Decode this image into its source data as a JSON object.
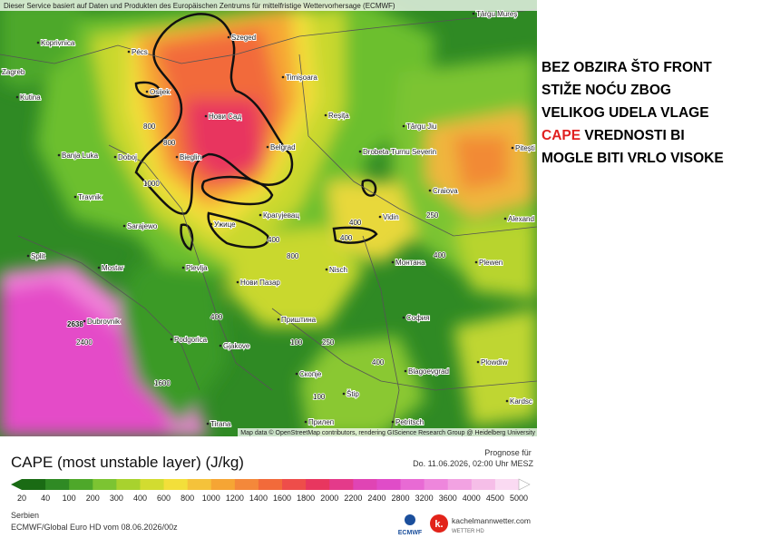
{
  "map": {
    "attribution_top": "Dieser Service basiert auf Daten und Produkten des Europäischen Zentrums für mittelfristige Wettervorhersage (ECMWF)",
    "attribution_bottom": "Map data © OpenStreetMap contributors, rendering GIScience Research Group @ Heidelberg University",
    "cities": [
      "Târgu Mureș",
      "Koprivnica",
      "Pécs",
      "Szeged",
      "Zagreb",
      "Osijek",
      "Kutina",
      "Timișoara",
      "Нови Сад",
      "Reșița",
      "Banja Luka",
      "Doboj",
      "Bieglin",
      "Belgrad",
      "Drobeta-Turnu Severin",
      "Târgu Jiu",
      "Pitești",
      "Travnik",
      "Craiova",
      "Крагујевац",
      "Sarajewo",
      "Ужице",
      "Vidin",
      "Alexand",
      "Split",
      "Mostar",
      "Plevlja",
      "Nisch",
      "Монтана",
      "Plewen",
      "Нови Пазар",
      "Dubrovnik",
      "Приштина",
      "София",
      "Podgorica",
      "Gjakove",
      "Скопје",
      "Blagoevgrad",
      "Plowdiw",
      "Štip",
      "Kardsc",
      "Tirana",
      "Прилеп",
      "Petritsch"
    ],
    "contour_labels": [
      "800",
      "1000",
      "800",
      "400",
      "250",
      "400",
      "400",
      "400",
      "2638",
      "2400",
      "1600",
      "100",
      "400",
      "100",
      "250",
      "400",
      "800"
    ]
  },
  "note": {
    "lines": [
      "BEZ OBZIRA ŠTO FRONT",
      "STIŽE NOĆU ZBOG",
      "VELIKOG UDELA VLAGE"
    ],
    "highlight": "CAPE",
    "highlight_rest": "VREDNOSTI BI",
    "last_line": "MOGLE BITI VRLO VISOKE"
  },
  "legend": {
    "title": "CAPE (most unstable layer) (J/kg)",
    "forecast_label": "Prognose für",
    "forecast_time": "Do. 11.06.2026, 02:00 Uhr MESZ",
    "ticks": [
      20,
      40,
      100,
      200,
      300,
      400,
      600,
      800,
      1000,
      1200,
      1400,
      1600,
      1800,
      2000,
      2200,
      2400,
      2800,
      3200,
      3600,
      4000,
      4500,
      5000
    ]
  },
  "footer": {
    "region": "Serbien",
    "model": "ECMWF/Global Euro HD vom  08.06.2026/00z",
    "ecmwf_logo": "ECMWF",
    "brand": "kachelmannwetter.com",
    "brand_sub": "WETTER HD"
  }
}
